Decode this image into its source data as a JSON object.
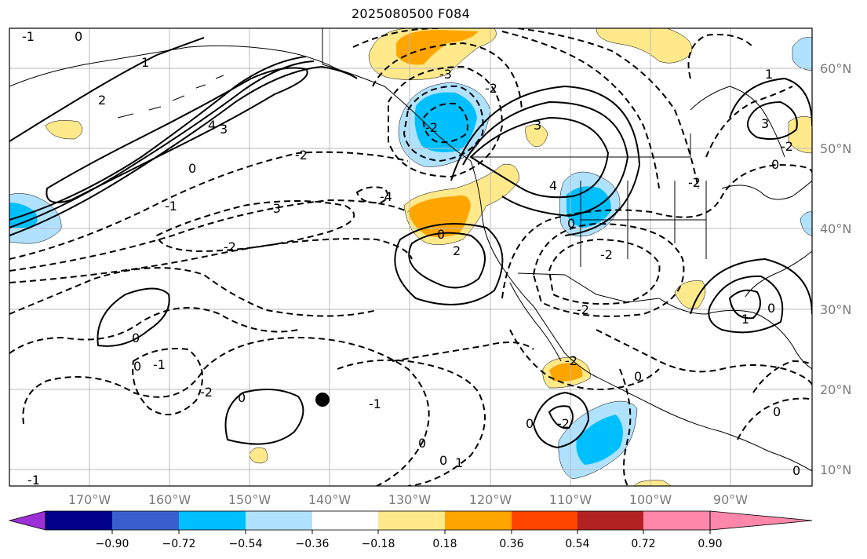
{
  "title": "2025080500 F084",
  "latitude_labels": [
    "60°N",
    "50°N",
    "40°N",
    "30°N",
    "20°N",
    "10°N"
  ],
  "longitude_labels": [
    "170°W",
    "160°W",
    "150°W",
    "140°W",
    "130°W",
    "120°W",
    "110°W",
    "100°W",
    "90°W"
  ],
  "colorbar": {
    "tick_labels": [
      "−0.90",
      "−0.72",
      "−0.54",
      "−0.36",
      "−0.18",
      "0.18",
      "0.36",
      "0.54",
      "0.72",
      "0.90"
    ],
    "colors": [
      "#9b30d6",
      "#00008b",
      "#3a5fcd",
      "#00bfff",
      "#b0e2ff",
      "#ffffff",
      "#ffe98a",
      "#ffa500",
      "#ff4500",
      "#b22222",
      "#ff88aa"
    ]
  },
  "contour_labels": [
    "-1",
    "0",
    "1",
    "-2",
    "2",
    "3",
    "4",
    "-3",
    "-4"
  ],
  "marker_color": "#000000"
}
